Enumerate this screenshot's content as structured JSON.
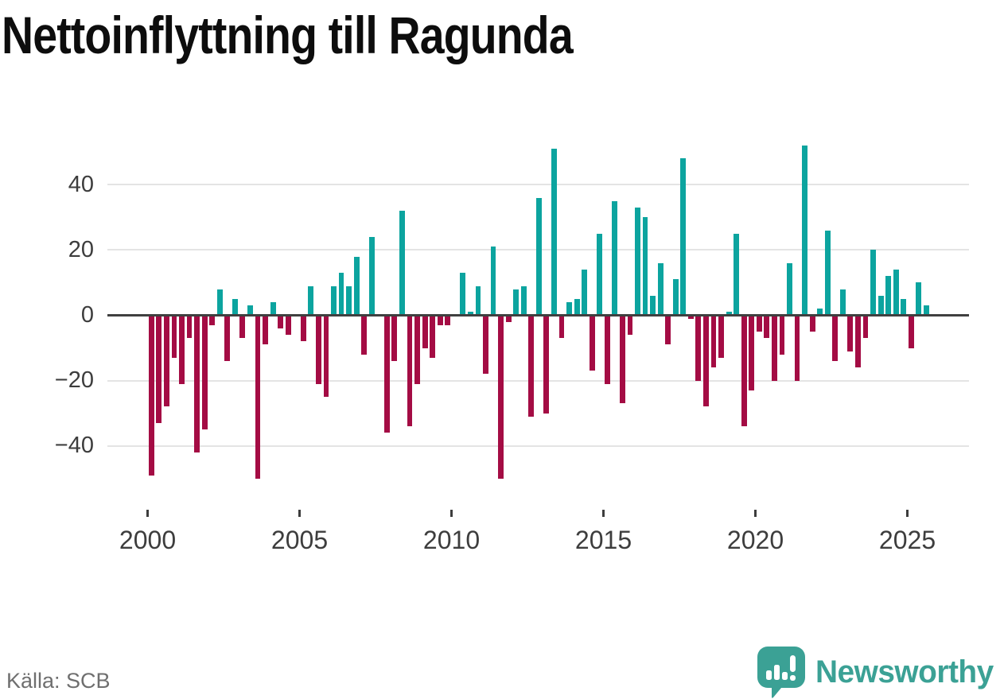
{
  "title": "Nettoinflyttning till Ragunda",
  "source": "Källa: SCB",
  "branding": {
    "name": "Newsworthy"
  },
  "colors": {
    "positive": "#0ca49f",
    "negative": "#a40c44",
    "grid": "#e4e4e4",
    "zero_axis": "#404040",
    "tick_label": "#3d3d3d",
    "brand": "#3ba195"
  },
  "chart_data": {
    "type": "bar",
    "title": "Nettoinflyttning till Ragunda",
    "xlabel": "",
    "ylabel": "",
    "period": "quarterly",
    "start": "2000 Q1",
    "end": "2025 Q3",
    "start_year": 2000,
    "ylim": [
      -55,
      57
    ],
    "grid": "horizontal",
    "y_ticks": [
      40,
      20,
      0,
      -20,
      -40
    ],
    "y_tick_labels": [
      "40",
      "20",
      "0",
      "−20",
      "−40"
    ],
    "x_tick_years": [
      2000,
      2005,
      2010,
      2015,
      2020,
      2025
    ],
    "x_tick_labels": [
      "2000",
      "2005",
      "2010",
      "2015",
      "2020",
      "2025"
    ],
    "values": [
      -49,
      -33,
      -28,
      -13,
      -21,
      -7,
      -42,
      -35,
      -3,
      8,
      -14,
      5,
      -7,
      3,
      -50,
      -9,
      4,
      -4,
      -6,
      0,
      -8,
      9,
      -21,
      -25,
      9,
      13,
      9,
      18,
      -12,
      24,
      0,
      -36,
      -14,
      32,
      -34,
      -21,
      -10,
      -13,
      -3,
      -3,
      0,
      13,
      1,
      9,
      -18,
      21,
      -50,
      -2,
      8,
      9,
      -31,
      36,
      -30,
      51,
      -7,
      4,
      5,
      14,
      -17,
      25,
      -21,
      35,
      -27,
      -6,
      33,
      30,
      6,
      16,
      -9,
      11,
      48,
      -1,
      -20,
      -28,
      -16,
      -13,
      1,
      25,
      -34,
      -23,
      -5,
      -7,
      -20,
      -12,
      16,
      -20,
      52,
      -5,
      2,
      26,
      -14,
      8,
      -11,
      -16,
      -7,
      20,
      6,
      12,
      14,
      5,
      -10,
      10,
      3
    ]
  }
}
